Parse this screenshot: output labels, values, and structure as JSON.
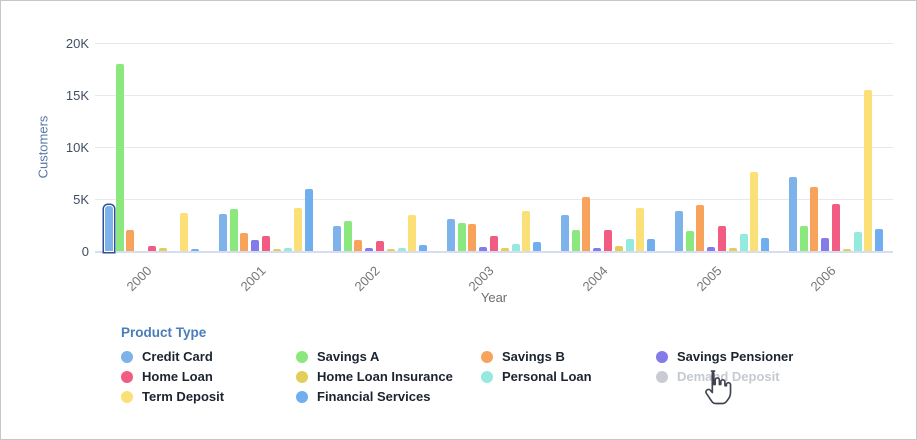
{
  "chart_data": {
    "type": "bar",
    "title": "",
    "xlabel": "Year",
    "ylabel": "Customers",
    "ylim": [
      0,
      20000
    ],
    "grid": true,
    "legend_position": "bottom",
    "yticks": [
      {
        "value": 0,
        "label": "0"
      },
      {
        "value": 5000,
        "label": "5K"
      },
      {
        "value": 10000,
        "label": "10K"
      },
      {
        "value": 15000,
        "label": "15K"
      },
      {
        "value": 20000,
        "label": "20K"
      }
    ],
    "categories": [
      "2000",
      "2001",
      "2002",
      "2003",
      "2004",
      "2005",
      "2006"
    ],
    "series": [
      {
        "name": "Credit Card",
        "color": "#7eb2ea",
        "visible": true,
        "values": [
          4300,
          3550,
          2450,
          3100,
          3450,
          3850,
          7100
        ]
      },
      {
        "name": "Savings A",
        "color": "#8be87e",
        "visible": true,
        "values": [
          18000,
          4000,
          2900,
          2650,
          2000,
          1900,
          2450
        ]
      },
      {
        "name": "Savings B",
        "color": "#f8a35c",
        "visible": true,
        "values": [
          2000,
          1700,
          1100,
          2600,
          5200,
          4400,
          6150
        ]
      },
      {
        "name": "Savings Pensioner",
        "color": "#837be8",
        "visible": true,
        "values": [
          0,
          1100,
          290,
          390,
          320,
          390,
          1250
        ]
      },
      {
        "name": "Home Loan",
        "color": "#f25c82",
        "visible": true,
        "values": [
          450,
          1400,
          930,
          1480,
          2050,
          2450,
          4500
        ]
      },
      {
        "name": "Home Loan Insurance",
        "color": "#e2ce58",
        "visible": true,
        "values": [
          250,
          230,
          230,
          320,
          510,
          320,
          200
        ]
      },
      {
        "name": "Personal Loan",
        "color": "#94ebdd",
        "visible": true,
        "values": [
          0,
          330,
          330,
          710,
          1120,
          1640,
          1850
        ]
      },
      {
        "name": "Demand Deposit",
        "color": "#c8ccd2",
        "visible": false,
        "values": []
      },
      {
        "name": "Term Deposit",
        "color": "#fbe078",
        "visible": true,
        "values": [
          3700,
          4150,
          3450,
          3800,
          4150,
          7600,
          15500
        ]
      },
      {
        "name": "Financial Services",
        "color": "#70aeef",
        "visible": true,
        "values": [
          150,
          6000,
          620,
          900,
          1120,
          1280,
          2150
        ]
      }
    ],
    "selected_point": {
      "series": "Credit Card",
      "category": "2000"
    }
  },
  "legend": {
    "title": "Product Type"
  },
  "icons": {
    "cursor": "hand-pointer-icon"
  },
  "ui_colors": {
    "selected_outline": "#2d4f96",
    "legend_title": "#4a7db9",
    "y_axis_title": "#5878a6",
    "disabled_label": "#c5cad1",
    "baseline": "#d7ddf1",
    "gridline": "#e9e9e9"
  }
}
